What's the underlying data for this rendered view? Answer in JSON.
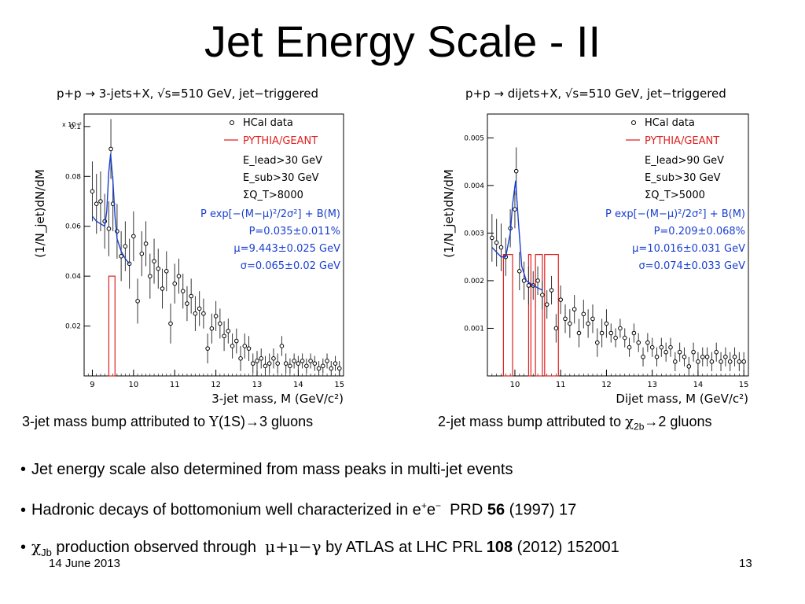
{
  "slide": {
    "title": "Jet Energy Scale - II",
    "footer_date": "14 June 2013",
    "page_number": "13"
  },
  "captions": [
    {
      "prefix": "3-jet mass bump attributed to ",
      "symbol": "Υ",
      "middle": "(1S)",
      "arrow": "→",
      "suffix": "3 gluons"
    },
    {
      "prefix": "2-jet mass bump attributed to ",
      "symbol": "χ",
      "sub": "2b",
      "arrow": "→",
      "suffix": "2 gluons"
    }
  ],
  "bullets": [
    {
      "text": "Jet energy scale also determined from mass peaks in multi-jet events"
    },
    {
      "pre": "Hadronic decays of bottomonium well characterized in e",
      "sup1": "+",
      "mid": "e",
      "sup2": "−",
      "ref": "  PRD ",
      "bold": "56",
      "post": " (1997) 17"
    },
    {
      "sym": "χ",
      "sub": "Jb",
      "pre": " production observed through  ",
      "decay": "μ+μ−γ",
      "mid": " by ATLAS at LHC  PRL ",
      "bold": "108",
      "post": " (2012) 152001"
    }
  ],
  "chart_data": [
    {
      "type": "scatter",
      "title": "p+p → 3-jets+X, √s=510 GeV, jet−triggered",
      "xlabel": "3-jet mass, M (GeV/c²)",
      "ylabel": "(1/N_jet)dN/dM",
      "y_multiplier": "x 10⁻²",
      "xlim": [
        8.8,
        15.1
      ],
      "ylim": [
        0,
        0.105
      ],
      "xticks": [
        9,
        10,
        11,
        12,
        13,
        14,
        15
      ],
      "yticks": [
        0.02,
        0.04,
        0.06,
        0.08,
        0.1
      ],
      "ytick_labels": [
        "0.02",
        "0.04",
        "0.06",
        "0.08",
        "0.1"
      ],
      "legend": {
        "data": "HCal data",
        "model": "PYTHIA/GEANT"
      },
      "annotations": [
        "E_lead>30 GeV",
        "E_sub>30 GeV",
        "ΣQ_T>8000"
      ],
      "fit_text": [
        "P exp[−(M−μ)²/2σ²] + B(M)",
        "P=0.035±0.011%",
        "μ=9.443±0.025 GeV",
        "σ=0.065±0.02 GeV"
      ],
      "series": [
        {
          "name": "HCal data",
          "x": [
            9.0,
            9.1,
            9.2,
            9.3,
            9.4,
            9.45,
            9.5,
            9.6,
            9.7,
            9.8,
            9.9,
            10.0,
            10.1,
            10.2,
            10.3,
            10.4,
            10.5,
            10.6,
            10.7,
            10.8,
            10.9,
            11.0,
            11.1,
            11.2,
            11.3,
            11.4,
            11.5,
            11.6,
            11.7,
            11.8,
            11.9,
            12.0,
            12.1,
            12.2,
            12.3,
            12.4,
            12.5,
            12.6,
            12.7,
            12.8,
            12.9,
            13.0,
            13.1,
            13.2,
            13.3,
            13.4,
            13.5,
            13.6,
            13.7,
            13.8,
            13.9,
            14.0,
            14.1,
            14.2,
            14.3,
            14.4,
            14.5,
            14.6,
            14.7,
            14.8,
            14.9,
            15.0
          ],
          "y": [
            0.074,
            0.069,
            0.07,
            0.062,
            0.059,
            0.091,
            0.069,
            0.058,
            0.048,
            0.052,
            0.045,
            0.056,
            0.03,
            0.049,
            0.053,
            0.04,
            0.046,
            0.043,
            0.035,
            0.042,
            0.021,
            0.037,
            0.04,
            0.034,
            0.029,
            0.032,
            0.025,
            0.027,
            0.025,
            0.011,
            0.019,
            0.024,
            0.021,
            0.016,
            0.018,
            0.012,
            0.014,
            0.007,
            0.012,
            0.011,
            0.005,
            0.006,
            0.007,
            0.004,
            0.005,
            0.007,
            0.005,
            0.012,
            0.005,
            0.004,
            0.006,
            0.005,
            0.006,
            0.004,
            0.006,
            0.005,
            0.003,
            0.004,
            0.006,
            0.003,
            0.005,
            0.003
          ],
          "yerr": [
            0.012,
            0.012,
            0.012,
            0.011,
            0.011,
            0.012,
            0.011,
            0.011,
            0.01,
            0.01,
            0.01,
            0.01,
            0.009,
            0.009,
            0.009,
            0.009,
            0.009,
            0.008,
            0.008,
            0.008,
            0.008,
            0.008,
            0.007,
            0.007,
            0.007,
            0.007,
            0.007,
            0.007,
            0.006,
            0.006,
            0.006,
            0.006,
            0.006,
            0.006,
            0.005,
            0.005,
            0.005,
            0.005,
            0.005,
            0.005,
            0.004,
            0.004,
            0.004,
            0.004,
            0.004,
            0.004,
            0.004,
            0.004,
            0.004,
            0.003,
            0.003,
            0.003,
            0.003,
            0.003,
            0.003,
            0.003,
            0.003,
            0.003,
            0.003,
            0.003,
            0.003,
            0.003
          ]
        },
        {
          "name": "PYTHIA/GEANT",
          "type": "histogram",
          "bins": [
            [
              9.4,
              9.55,
              0.04
            ]
          ]
        },
        {
          "name": "fit",
          "type": "line",
          "x": [
            9.0,
            9.1,
            9.2,
            9.3,
            9.35,
            9.4,
            9.443,
            9.5,
            9.55,
            9.6,
            9.7,
            9.8,
            9.9
          ],
          "y": [
            0.064,
            0.062,
            0.061,
            0.06,
            0.066,
            0.082,
            0.089,
            0.078,
            0.064,
            0.055,
            0.05,
            0.047,
            0.045
          ]
        }
      ]
    },
    {
      "type": "scatter",
      "title": "p+p → dijets+X, √s=510 GeV, jet−triggered",
      "xlabel": "Dijet mass, M (GeV/c²)",
      "ylabel": "(1/N_jet)dN/dM",
      "xlim": [
        9.4,
        15.1
      ],
      "ylim": [
        0,
        0.0055
      ],
      "xticks": [
        10,
        11,
        12,
        13,
        14,
        15
      ],
      "yticks": [
        0.001,
        0.002,
        0.003,
        0.004,
        0.005
      ],
      "ytick_labels": [
        "0.001",
        "0.002",
        "0.003",
        "0.004",
        "0.005"
      ],
      "legend": {
        "data": "HCal data",
        "model": "PYTHIA/GEANT"
      },
      "annotations": [
        "E_lead>90 GeV",
        "E_sub>30 GeV",
        "ΣQ_T>5000"
      ],
      "fit_text": [
        "P exp[−(M−μ)²/2σ²] + B(M)",
        "P=0.209±0.068%",
        "μ=10.016±0.031 GeV",
        "σ=0.074±0.033 GeV"
      ],
      "series": [
        {
          "name": "HCal data",
          "x": [
            9.5,
            9.6,
            9.7,
            9.8,
            9.9,
            10.0,
            10.03,
            10.1,
            10.2,
            10.3,
            10.4,
            10.5,
            10.6,
            10.7,
            10.8,
            10.9,
            11.0,
            11.1,
            11.2,
            11.3,
            11.4,
            11.5,
            11.6,
            11.7,
            11.8,
            11.9,
            12.0,
            12.1,
            12.2,
            12.3,
            12.4,
            12.5,
            12.6,
            12.7,
            12.8,
            12.9,
            13.0,
            13.1,
            13.2,
            13.3,
            13.4,
            13.5,
            13.6,
            13.7,
            13.8,
            13.9,
            14.0,
            14.1,
            14.2,
            14.3,
            14.4,
            14.5,
            14.6,
            14.7,
            14.8,
            14.9,
            15.0
          ],
          "y": [
            0.0029,
            0.0028,
            0.0027,
            0.0025,
            0.0031,
            0.0035,
            0.0043,
            0.0022,
            0.002,
            0.0019,
            0.0019,
            0.002,
            0.0017,
            0.0015,
            0.0018,
            0.001,
            0.0016,
            0.0012,
            0.0011,
            0.0014,
            0.0009,
            0.0013,
            0.0011,
            0.0012,
            0.0007,
            0.0009,
            0.0011,
            0.0009,
            0.0008,
            0.001,
            0.0008,
            0.0006,
            0.0009,
            0.0007,
            0.0004,
            0.0007,
            0.0006,
            0.0004,
            0.0006,
            0.0005,
            0.0006,
            0.0003,
            0.0005,
            0.0004,
            0.0002,
            0.0005,
            0.0003,
            0.0004,
            0.0004,
            0.0003,
            0.0005,
            0.0003,
            0.0004,
            0.0003,
            0.0004,
            0.0003,
            0.0003
          ],
          "yerr": [
            0.0005,
            0.0005,
            0.0005,
            0.0004,
            0.0004,
            0.0004,
            0.0005,
            0.0004,
            0.0004,
            0.0004,
            0.0003,
            0.0003,
            0.0003,
            0.0003,
            0.0003,
            0.0003,
            0.0003,
            0.0003,
            0.0003,
            0.0003,
            0.0003,
            0.0003,
            0.0003,
            0.0003,
            0.0003,
            0.0003,
            0.0003,
            0.0002,
            0.0002,
            0.0002,
            0.0002,
            0.0002,
            0.0002,
            0.0002,
            0.0002,
            0.0002,
            0.0002,
            0.0002,
            0.0002,
            0.0002,
            0.0002,
            0.0002,
            0.0002,
            0.0002,
            0.0002,
            0.0002,
            0.0002,
            0.0002,
            0.0002,
            0.0002,
            0.0002,
            0.0002,
            0.0002,
            0.0002,
            0.0002,
            0.0002,
            0.0002
          ]
        },
        {
          "name": "PYTHIA/GEANT",
          "type": "histogram",
          "bins": [
            [
              9.75,
              9.95,
              0.00255
            ],
            [
              10.3,
              10.35,
              0.00255
            ],
            [
              10.45,
              10.6,
              0.00255
            ],
            [
              10.65,
              10.95,
              0.00255
            ]
          ]
        },
        {
          "name": "fit",
          "type": "line",
          "x": [
            9.5,
            9.6,
            9.7,
            9.8,
            9.9,
            9.95,
            10.016,
            10.08,
            10.15,
            10.25,
            10.4,
            10.6
          ],
          "y": [
            0.0027,
            0.0026,
            0.0025,
            0.0025,
            0.003,
            0.0036,
            0.0041,
            0.0032,
            0.0023,
            0.002,
            0.0019,
            0.0018
          ]
        }
      ]
    }
  ],
  "colors": {
    "data": "#000000",
    "model": "#e02020",
    "fit": "#1a3fd0",
    "fit_text": "#1a3fd0"
  }
}
